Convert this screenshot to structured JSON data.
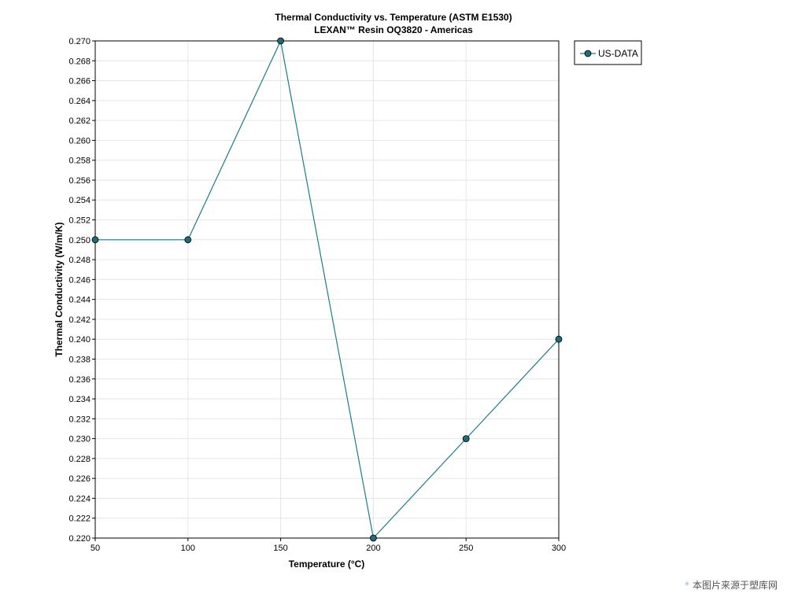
{
  "chart_data": {
    "type": "line",
    "title": "Thermal Conductivity vs. Temperature (ASTM E1530)",
    "subtitle": "LEXAN™ Resin OQ3820 - Americas",
    "xlabel": "Temperature (°C)",
    "ylabel": "Thermal Conductivity (W/m/K)",
    "xlim": [
      50,
      300
    ],
    "ylim": [
      0.22,
      0.27
    ],
    "x_ticks": [
      "50",
      "100",
      "150",
      "200",
      "250",
      "300"
    ],
    "y_ticks": [
      "0.220",
      "0.222",
      "0.224",
      "0.226",
      "0.228",
      "0.230",
      "0.232",
      "0.234",
      "0.236",
      "0.238",
      "0.240",
      "0.242",
      "0.244",
      "0.246",
      "0.248",
      "0.250",
      "0.252",
      "0.254",
      "0.256",
      "0.258",
      "0.260",
      "0.262",
      "0.264",
      "0.266",
      "0.268",
      "0.270"
    ],
    "grid": true,
    "legend_position": "top-right-outside",
    "series": [
      {
        "name": "US-DATA",
        "color": "#1f7a8c",
        "marker_color": "#1f6b7a",
        "x": [
          50,
          100,
          150,
          200,
          250,
          300
        ],
        "y": [
          0.25,
          0.25,
          0.27,
          0.22,
          0.23,
          0.24
        ]
      }
    ]
  },
  "watermark": {
    "star": "*",
    "text": "本图片来源于塑库网"
  }
}
